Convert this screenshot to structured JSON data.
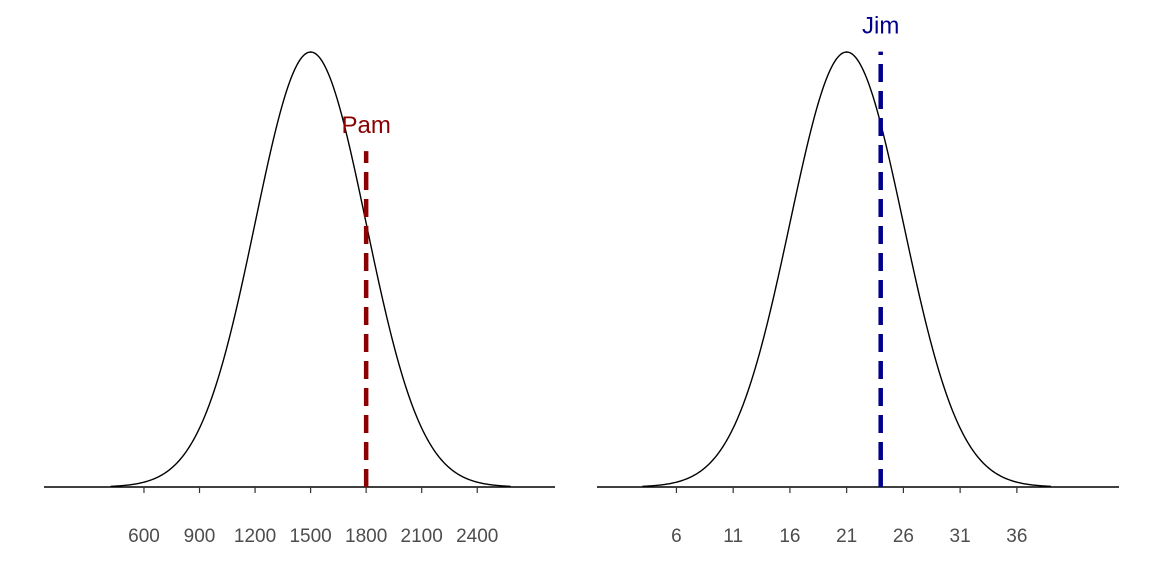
{
  "chart_data": [
    {
      "type": "line",
      "distribution": "normal",
      "mean": 1500,
      "sd": 300,
      "xlim": [
        60,
        2820
      ],
      "ticks": [
        600,
        900,
        1200,
        1500,
        1800,
        2100,
        2400
      ],
      "tick_labels": [
        "600",
        "900",
        "1200",
        "1500",
        "1800",
        "2100",
        "2400"
      ],
      "marker": {
        "label": "Pam",
        "x": 1800,
        "color": "#8B0000",
        "style": "dashed"
      },
      "grid": false
    },
    {
      "type": "line",
      "distribution": "normal",
      "mean": 21,
      "sd": 5,
      "xlim": [
        -1,
        45
      ],
      "ticks": [
        6,
        11,
        16,
        21,
        26,
        31,
        36
      ],
      "tick_labels": [
        "6",
        "11",
        "16",
        "21",
        "26",
        "31",
        "36"
      ],
      "marker": {
        "label": "Jim",
        "x": 24,
        "color": "#00008B",
        "style": "dashed"
      },
      "grid": false
    }
  ]
}
